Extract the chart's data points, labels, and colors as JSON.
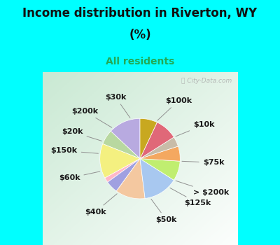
{
  "title_line1": "Income distribution in Riverton, WY",
  "title_line2": "(%)",
  "subtitle": "All residents",
  "title_color": "#111111",
  "subtitle_color": "#22aa55",
  "top_bg": "#00ffff",
  "bottom_bg": "#00ffff",
  "chart_bg_tl": "#c8e8d0",
  "chart_bg_tr": "#e0f4e8",
  "chart_bg_bl": "#d8f0e0",
  "chart_bg_br": "#f0faf4",
  "labels": [
    "$100k",
    "$10k",
    "$75k",
    "> $200k",
    "$125k",
    "$50k",
    "$40k",
    "$60k",
    "$150k",
    "$20k",
    "$200k",
    "$30k"
  ],
  "values": [
    13,
    6,
    14,
    2,
    5,
    12,
    14,
    8,
    6,
    4,
    9,
    7
  ],
  "colors": [
    "#b8aae0",
    "#b8d8a0",
    "#f4f080",
    "#ffb8c8",
    "#a0a0e0",
    "#f4c8a0",
    "#a8c8f0",
    "#c0ee70",
    "#f4a860",
    "#c8bca8",
    "#e06878",
    "#c8a820"
  ],
  "startangle": 90,
  "label_fontsize": 8,
  "figsize": [
    4.0,
    3.5
  ],
  "dpi": 100,
  "title_fontsize": 12,
  "subtitle_fontsize": 10
}
